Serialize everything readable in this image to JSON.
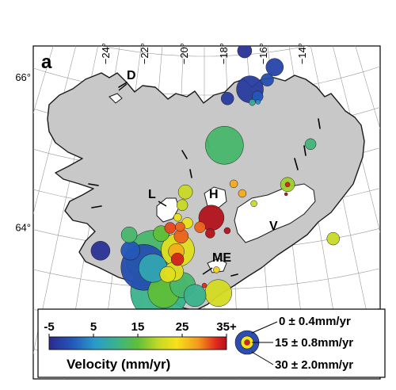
{
  "panel_letter": "a",
  "longitude_labels": [
    {
      "lon": -24,
      "text": "−24°"
    },
    {
      "lon": -22,
      "text": "−22°"
    },
    {
      "lon": -20,
      "text": "−20°"
    },
    {
      "lon": -18,
      "text": "−18°"
    },
    {
      "lon": -16,
      "text": "−16°"
    },
    {
      "lon": -14,
      "text": "−14°"
    }
  ],
  "latitude_labels": [
    {
      "lat": 66,
      "text": "66°"
    },
    {
      "lat": 64,
      "text": "64°"
    }
  ],
  "region_labels": [
    {
      "id": "D",
      "text": "D"
    },
    {
      "id": "L",
      "text": "L"
    },
    {
      "id": "H",
      "text": "H"
    },
    {
      "id": "V",
      "text": "V"
    },
    {
      "id": "ME",
      "text": "ME"
    }
  ],
  "colors": {
    "land": "#c8c8c8",
    "glacier": "#ffffff",
    "coast": "#1a1a1a",
    "sea": "#ffffff"
  },
  "colorbar": {
    "title": "Velocity (mm/yr)",
    "min": -5,
    "max": 35,
    "tick_labels": [
      "-5",
      "5",
      "15",
      "25",
      "35+"
    ],
    "tick_values": [
      -5,
      5,
      15,
      25,
      35
    ]
  },
  "size_legend": {
    "entries": [
      {
        "text": "0 ± 0.4mm/yr"
      },
      {
        "text": "15 ± 0.8mm/yr"
      },
      {
        "text": "30 ± 2.0mm/yr"
      }
    ]
  },
  "stations": [
    {
      "lon": -17.1,
      "lat": 66.55,
      "v": -4,
      "s": 9
    },
    {
      "lon": -15.8,
      "lat": 66.3,
      "v": -2,
      "s": 11
    },
    {
      "lon": -16.2,
      "lat": 66.15,
      "v": -1,
      "s": 8
    },
    {
      "lon": -17.0,
      "lat": 66.05,
      "v": -3,
      "s": 17
    },
    {
      "lon": -16.7,
      "lat": 65.95,
      "v": 0,
      "s": 7
    },
    {
      "lon": -18.0,
      "lat": 65.95,
      "v": -3,
      "s": 8
    },
    {
      "lon": -16.95,
      "lat": 65.88,
      "v": 9,
      "s": 4
    },
    {
      "lon": -16.7,
      "lat": 65.88,
      "v": 4,
      "s": 3
    },
    {
      "lon": -18.2,
      "lat": 65.35,
      "v": 12,
      "s": 24
    },
    {
      "lon": -14.8,
      "lat": 65.25,
      "v": 11,
      "s": 7
    },
    {
      "lon": -17.9,
      "lat": 64.85,
      "v": 27,
      "s": 5
    },
    {
      "lon": -17.6,
      "lat": 64.72,
      "v": 27,
      "s": 5
    },
    {
      "lon": -15.9,
      "lat": 64.78,
      "v": 18,
      "s": 9
    },
    {
      "lon": -15.9,
      "lat": 64.78,
      "v": 33,
      "s": 3
    },
    {
      "lon": -16.0,
      "lat": 64.66,
      "v": 35,
      "s": 2
    },
    {
      "lon": -19.7,
      "lat": 64.75,
      "v": 20,
      "s": 9
    },
    {
      "lon": -19.8,
      "lat": 64.58,
      "v": 20,
      "s": 7
    },
    {
      "lon": -17.2,
      "lat": 64.58,
      "v": 20,
      "s": 4
    },
    {
      "lon": -19.95,
      "lat": 64.42,
      "v": 23,
      "s": 5
    },
    {
      "lon": -20.2,
      "lat": 64.28,
      "v": 31,
      "s": 7
    },
    {
      "lon": -19.85,
      "lat": 64.3,
      "v": 30,
      "s": 6
    },
    {
      "lon": -19.8,
      "lat": 64.18,
      "v": 30,
      "s": 9
    },
    {
      "lon": -19.6,
      "lat": 64.35,
      "v": 23,
      "s": 7
    },
    {
      "lon": -19.15,
      "lat": 64.3,
      "v": 30,
      "s": 7
    },
    {
      "lon": -18.75,
      "lat": 64.42,
      "v": 35,
      "s": 16
    },
    {
      "lon": -18.8,
      "lat": 64.22,
      "v": 35,
      "s": 6
    },
    {
      "lon": -18.2,
      "lat": 64.25,
      "v": 35,
      "s": 4
    },
    {
      "lon": -21.6,
      "lat": 64.15,
      "v": 12,
      "s": 10
    },
    {
      "lon": -20.5,
      "lat": 64.2,
      "v": 15,
      "s": 10
    },
    {
      "lon": -19.9,
      "lat": 64.0,
      "v": 22,
      "s": 21
    },
    {
      "lon": -19.95,
      "lat": 63.98,
      "v": 27,
      "s": 10
    },
    {
      "lon": -19.9,
      "lat": 63.88,
      "v": 33,
      "s": 8
    },
    {
      "lon": -21.5,
      "lat": 63.95,
      "v": 0,
      "s": 12
    },
    {
      "lon": -20.7,
      "lat": 63.88,
      "v": 12,
      "s": 35
    },
    {
      "lon": -21.0,
      "lat": 63.75,
      "v": -1,
      "s": 29
    },
    {
      "lon": -20.7,
      "lat": 63.75,
      "v": 7,
      "s": 18
    },
    {
      "lon": -20.0,
      "lat": 63.72,
      "v": 22,
      "s": 12
    },
    {
      "lon": -22.5,
      "lat": 63.9,
      "v": -4,
      "s": 12
    },
    {
      "lon": -20.2,
      "lat": 63.68,
      "v": 22,
      "s": 10
    },
    {
      "lon": -20.3,
      "lat": 63.45,
      "v": 15,
      "s": 20
    },
    {
      "lon": -19.7,
      "lat": 63.55,
      "v": 12,
      "s": 16
    },
    {
      "lon": -20.45,
      "lat": 63.45,
      "v": 10,
      "s": 36
    },
    {
      "lon": -19.3,
      "lat": 63.42,
      "v": 10,
      "s": 14
    },
    {
      "lon": -18.55,
      "lat": 63.45,
      "v": 21,
      "s": 17
    },
    {
      "lon": -19.0,
      "lat": 63.55,
      "v": 32,
      "s": 3
    },
    {
      "lon": -18.6,
      "lat": 63.75,
      "v": 25,
      "s": 4
    },
    {
      "lon": -14.6,
      "lat": 64.0,
      "v": 20,
      "s": 8
    }
  ]
}
